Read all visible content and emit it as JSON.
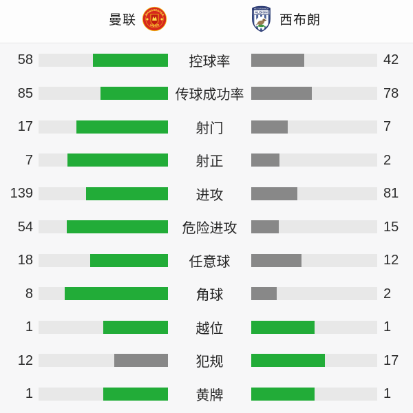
{
  "header": {
    "home": {
      "name": "曼联",
      "crest_text_top": "MANCHESTER",
      "crest_text_bottom": "UNITED"
    },
    "away": {
      "name": "西布朗",
      "crest_text_top": "WEST BROMWICH",
      "crest_text_main": "ALBION"
    }
  },
  "colors": {
    "green": "#22ac38",
    "gray": "#888888",
    "track": "#e8e8e8",
    "header_bg": "#fdfdfd",
    "body_bg": "#f7f7f8",
    "divider": "#e6e6e6",
    "text": "#2b2b2b"
  },
  "stats": [
    {
      "label": "控球率",
      "home": 58,
      "away": 42
    },
    {
      "label": "传球成功率",
      "home": 85,
      "away": 78
    },
    {
      "label": "射门",
      "home": 17,
      "away": 7
    },
    {
      "label": "射正",
      "home": 7,
      "away": 2
    },
    {
      "label": "进攻",
      "home": 139,
      "away": 81
    },
    {
      "label": "危险进攻",
      "home": 54,
      "away": 15
    },
    {
      "label": "任意球",
      "home": 18,
      "away": 12
    },
    {
      "label": "角球",
      "home": 8,
      "away": 2
    },
    {
      "label": "越位",
      "home": 1,
      "away": 1
    },
    {
      "label": "犯规",
      "home": 12,
      "away": 17
    },
    {
      "label": "黄牌",
      "home": 1,
      "away": 1
    }
  ]
}
